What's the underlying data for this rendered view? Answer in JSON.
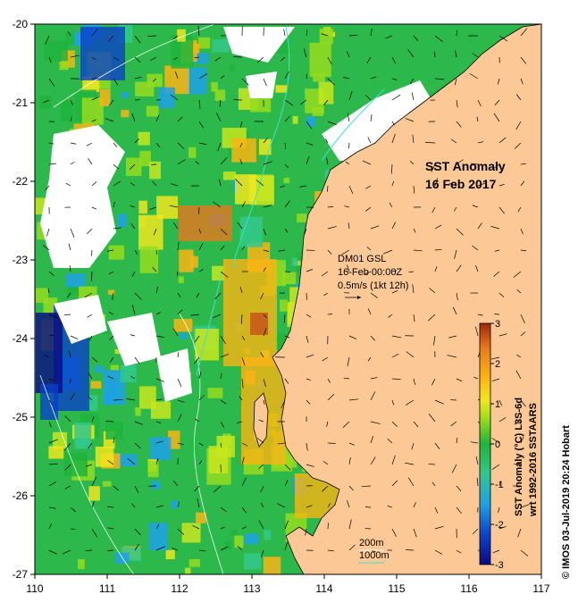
{
  "map": {
    "title_line1": "SST Anomaly",
    "title_line2": "16 Feb 2017",
    "x_ticks": [
      "110",
      "111",
      "112",
      "113",
      "114",
      "115",
      "116",
      "117"
    ],
    "y_ticks": [
      "-20",
      "-21",
      "-22",
      "-23",
      "-24",
      "-25",
      "-26",
      "-27"
    ],
    "lon_range": [
      110,
      117
    ],
    "lat_range": [
      -27,
      -20
    ],
    "land_color": "#fbc896",
    "no_data_color": "#ffffff",
    "current_contour_color": "#40e0d0"
  },
  "current_info": {
    "line1": "DM01 GSL",
    "line2": "16-Feb 00:00Z",
    "line3": "0.5m/s (1kt 12h)"
  },
  "depth_legend": {
    "label_200": "200m",
    "label_1000": "1000m"
  },
  "colorbar": {
    "ticks": [
      "3",
      "2",
      "1",
      "0",
      "-1",
      "-2",
      "-3"
    ],
    "range": [
      -3,
      3
    ],
    "title_line1": "SST Anomaly (°C) L3S-6d",
    "title_line2": "wrt 1992-2016 SSTAARS",
    "colors": [
      "#0b0a82",
      "#0a40c8",
      "#1ea0e8",
      "#32c88c",
      "#1eb43c",
      "#96dc1e",
      "#f0e61e",
      "#fab414",
      "#e6781e",
      "#a0280a"
    ]
  },
  "credit": "© IMOS 03-Jul-2019 20:24 Hobart"
}
